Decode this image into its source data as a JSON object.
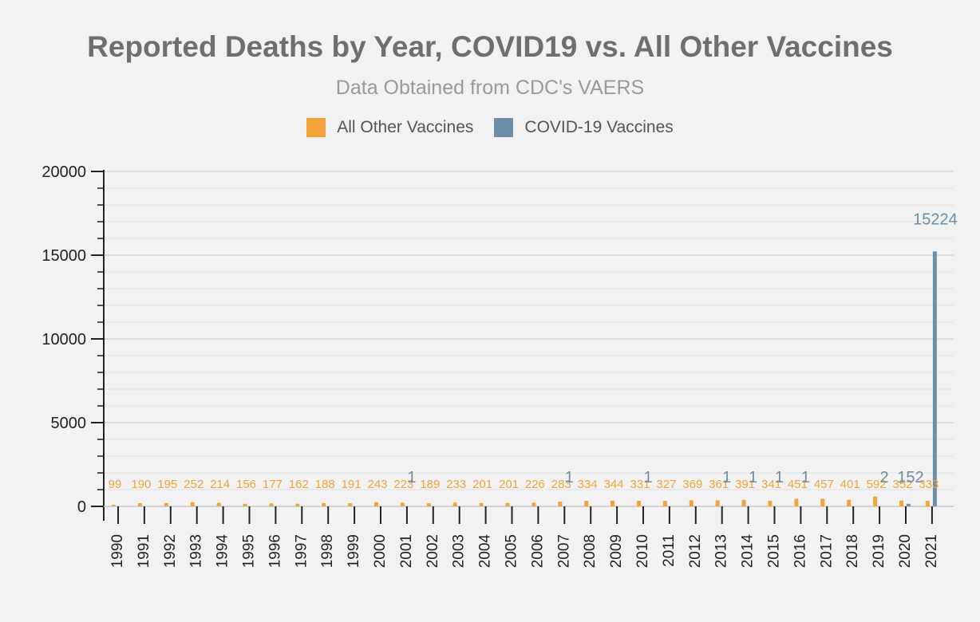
{
  "chart_data": {
    "type": "bar",
    "title": "Reported Deaths by Year, COVID19 vs. All Other Vaccines",
    "subtitle": "Data Obtained from CDC's VAERS",
    "xlabel": "",
    "ylabel": "",
    "ylim": [
      0,
      20000
    ],
    "yticks": [
      "0",
      "5000",
      "10000",
      "15000",
      "20000"
    ],
    "grid": true,
    "legend_position": "top-center",
    "categories": [
      "1990",
      "1991",
      "1992",
      "1993",
      "1994",
      "1995",
      "1996",
      "1997",
      "1998",
      "1999",
      "2000",
      "2001",
      "2002",
      "2003",
      "2004",
      "2005",
      "2006",
      "2007",
      "2008",
      "2009",
      "2010",
      "2011",
      "2012",
      "2013",
      "2014",
      "2015",
      "2016",
      "2017",
      "2018",
      "2019",
      "2020",
      "2021"
    ],
    "series": [
      {
        "name": "All Other Vaccines",
        "color": "#f2a33a",
        "values": [
          99,
          190,
          195,
          252,
          214,
          156,
          177,
          162,
          188,
          191,
          243,
          223,
          189,
          233,
          201,
          201,
          226,
          283,
          334,
          344,
          331,
          327,
          369,
          361,
          391,
          341,
          451,
          457,
          401,
          592,
          352,
          333
        ],
        "labels": [
          "99",
          "190",
          "195",
          "252",
          "214",
          "156",
          "177",
          "162",
          "188",
          "191",
          "243",
          "223",
          "189",
          "233",
          "201",
          "201",
          "226",
          "283",
          "334",
          "344",
          "331",
          "327",
          "369",
          "361",
          "391",
          "341",
          "451",
          "457",
          "401",
          "592",
          "352",
          "333"
        ]
      },
      {
        "name": "COVID-19 Vaccines",
        "color": "#6b8fa8",
        "values": [
          0,
          0,
          0,
          0,
          0,
          0,
          0,
          0,
          0,
          0,
          0,
          1,
          0,
          0,
          0,
          0,
          0,
          1,
          0,
          0,
          1,
          0,
          0,
          1,
          1,
          1,
          1,
          0,
          0,
          2,
          152,
          15224
        ],
        "labels": [
          "",
          "",
          "",
          "",
          "",
          "",
          "",
          "",
          "",
          "",
          "",
          "1",
          "",
          "",
          "",
          "",
          "",
          "1",
          "",
          "",
          "1",
          "",
          "",
          "1",
          "1",
          "1",
          "1",
          "",
          "",
          "2",
          "152",
          "15224"
        ]
      }
    ]
  }
}
